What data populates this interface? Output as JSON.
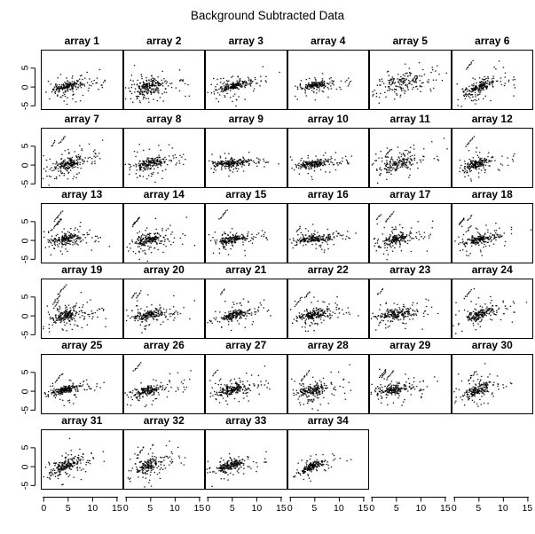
{
  "title": "Background Subtracted Data",
  "chart_data": {
    "type": "scatter",
    "title": "Background Subtracted Data",
    "grid": {
      "rows": 6,
      "cols": 6,
      "n_panels": 34,
      "grid_lines": false,
      "legend": "none"
    },
    "xlim": [
      -0.6,
      16.2
    ],
    "ylim": [
      -6.1,
      9.9
    ],
    "x_ticks": [
      0,
      5,
      10,
      15
    ],
    "y_ticks": [
      5,
      0,
      -5
    ],
    "x_tick_labels": [
      "0",
      "5",
      "10",
      "15"
    ],
    "y_tick_labels": [
      "5",
      "0",
      "-5"
    ],
    "point_color": "#000000",
    "axis_color": "#000000",
    "panels": [
      {
        "label": "array 1",
        "seed": 101,
        "core": [
          4.9,
          0.2,
          1.3,
          0.6,
          0.3
        ],
        "nc": 130,
        "nh": 75,
        "nt": 14,
        "nb": 8,
        "st": 0
      },
      {
        "label": "array 2",
        "seed": 102,
        "core": [
          4.6,
          0.1,
          1.5,
          0.9,
          0.2
        ],
        "nc": 150,
        "nh": 85,
        "nt": 10,
        "nb": 10,
        "st": 0
      },
      {
        "label": "array 3",
        "seed": 103,
        "core": [
          5.2,
          0.3,
          1.6,
          0.55,
          0.35
        ],
        "nc": 150,
        "nh": 60,
        "nt": 12,
        "nb": 4,
        "st": 0
      },
      {
        "label": "array 4",
        "seed": 104,
        "core": [
          5.0,
          0.5,
          1.4,
          0.45,
          0.2
        ],
        "nc": 140,
        "nh": 50,
        "nt": 10,
        "nb": 6,
        "st": 0
      },
      {
        "label": "array 5",
        "seed": 105,
        "core": [
          6.0,
          1.0,
          2.6,
          1.5,
          0.35
        ],
        "nc": 110,
        "nh": 70,
        "nt": 8,
        "nb": 4,
        "st": 0,
        "hy": 1.6
      },
      {
        "label": "array 6",
        "seed": 106,
        "core": [
          5.0,
          0.0,
          1.5,
          0.7,
          0.5
        ],
        "nc": 140,
        "nh": 70,
        "nt": 12,
        "nb": 6,
        "st": 1
      },
      {
        "label": "array 7",
        "seed": 107,
        "core": [
          5.0,
          0.2,
          1.5,
          0.7,
          0.3
        ],
        "nc": 130,
        "nh": 80,
        "nt": 10,
        "nb": 8,
        "st": 2
      },
      {
        "label": "array 8",
        "seed": 108,
        "core": [
          4.7,
          0.4,
          1.5,
          0.7,
          0.3
        ],
        "nc": 150,
        "nh": 70,
        "nt": 10,
        "nb": 8,
        "st": 0
      },
      {
        "label": "array 9",
        "seed": 109,
        "core": [
          4.8,
          0.6,
          1.8,
          0.5,
          0.15
        ],
        "nc": 160,
        "nh": 60,
        "nt": 12,
        "nb": 4,
        "st": 0
      },
      {
        "label": "array 10",
        "seed": 110,
        "core": [
          4.6,
          0.3,
          1.7,
          0.5,
          0.15
        ],
        "nc": 150,
        "nh": 55,
        "nt": 12,
        "nb": 4,
        "st": 0
      },
      {
        "label": "array 11",
        "seed": 111,
        "core": [
          5.2,
          0.5,
          1.9,
          0.9,
          0.35
        ],
        "nc": 130,
        "nh": 70,
        "nt": 8,
        "nb": 4,
        "st": 1
      },
      {
        "label": "array 12",
        "seed": 112,
        "core": [
          4.6,
          0.2,
          1.3,
          0.6,
          0.3
        ],
        "nc": 140,
        "nh": 55,
        "nt": 8,
        "nb": 6,
        "st": 1
      },
      {
        "label": "array 13",
        "seed": 113,
        "core": [
          4.4,
          0.3,
          1.4,
          0.6,
          0.2
        ],
        "nc": 140,
        "nh": 65,
        "nt": 10,
        "nb": 6,
        "st": 3
      },
      {
        "label": "array 14",
        "seed": 114,
        "core": [
          4.8,
          0.2,
          1.4,
          0.7,
          0.25
        ],
        "nc": 140,
        "nh": 70,
        "nt": 8,
        "nb": 10,
        "st": 2
      },
      {
        "label": "array 15",
        "seed": 115,
        "core": [
          4.9,
          0.3,
          1.6,
          0.5,
          0.2
        ],
        "nc": 150,
        "nh": 55,
        "nt": 10,
        "nb": 5,
        "st": 1
      },
      {
        "label": "array 16",
        "seed": 116,
        "core": [
          4.7,
          0.4,
          1.8,
          0.5,
          0.15
        ],
        "nc": 160,
        "nh": 60,
        "nt": 10,
        "nb": 6,
        "st": 1
      },
      {
        "label": "array 17",
        "seed": 117,
        "core": [
          5.0,
          0.3,
          1.5,
          0.7,
          0.3
        ],
        "nc": 140,
        "nh": 75,
        "nt": 8,
        "nb": 6,
        "st": 2
      },
      {
        "label": "array 18",
        "seed": 118,
        "core": [
          5.1,
          0.2,
          1.4,
          0.6,
          0.25
        ],
        "nc": 140,
        "nh": 60,
        "nt": 10,
        "nb": 5,
        "st": 4
      },
      {
        "label": "array 19",
        "seed": 119,
        "core": [
          4.6,
          0.1,
          1.3,
          0.8,
          0.3
        ],
        "nc": 140,
        "nh": 80,
        "nt": 10,
        "nb": 8,
        "st": 3
      },
      {
        "label": "array 20",
        "seed": 120,
        "core": [
          4.8,
          0.3,
          1.6,
          0.6,
          0.25
        ],
        "nc": 140,
        "nh": 65,
        "nt": 10,
        "nb": 6,
        "st": 2
      },
      {
        "label": "array 21",
        "seed": 121,
        "core": [
          5.0,
          0.2,
          1.5,
          0.6,
          0.25
        ],
        "nc": 150,
        "nh": 60,
        "nt": 8,
        "nb": 6,
        "st": 1
      },
      {
        "label": "array 22",
        "seed": 122,
        "core": [
          4.7,
          0.3,
          1.5,
          0.6,
          0.25
        ],
        "nc": 150,
        "nh": 70,
        "nt": 8,
        "nb": 8,
        "st": 2
      },
      {
        "label": "array 23",
        "seed": 123,
        "core": [
          4.9,
          0.4,
          1.7,
          0.7,
          0.25
        ],
        "nc": 140,
        "nh": 70,
        "nt": 10,
        "nb": 6,
        "st": 1
      },
      {
        "label": "array 24",
        "seed": 124,
        "core": [
          5.3,
          0.5,
          1.5,
          0.7,
          0.4
        ],
        "nc": 140,
        "nh": 65,
        "nt": 8,
        "nb": 6,
        "st": 1
      },
      {
        "label": "array 25",
        "seed": 125,
        "core": [
          4.2,
          0.3,
          1.4,
          0.45,
          0.3
        ],
        "nc": 160,
        "nh": 55,
        "nt": 10,
        "nb": 6,
        "st": 1
      },
      {
        "label": "array 26",
        "seed": 126,
        "core": [
          4.7,
          0.3,
          1.5,
          0.6,
          0.3
        ],
        "nc": 130,
        "nh": 65,
        "nt": 10,
        "nb": 6,
        "st": 1
      },
      {
        "label": "array 27",
        "seed": 127,
        "core": [
          4.8,
          0.5,
          1.6,
          0.6,
          0.3
        ],
        "nc": 140,
        "nh": 70,
        "nt": 10,
        "nb": 6,
        "st": 1
      },
      {
        "label": "array 28",
        "seed": 128,
        "core": [
          4.6,
          0.2,
          1.5,
          0.7,
          0.25
        ],
        "nc": 140,
        "nh": 70,
        "nt": 8,
        "nb": 10,
        "st": 1
      },
      {
        "label": "array 29",
        "seed": 129,
        "core": [
          4.5,
          0.4,
          1.6,
          0.6,
          0.2
        ],
        "nc": 140,
        "nh": 65,
        "nt": 10,
        "nb": 4,
        "st": 3
      },
      {
        "label": "array 30",
        "seed": 130,
        "core": [
          4.8,
          0.3,
          1.3,
          0.8,
          0.5
        ],
        "nc": 130,
        "nh": 65,
        "nt": 6,
        "nb": 6,
        "st": 1
      },
      {
        "label": "array 31",
        "seed": 131,
        "core": [
          4.5,
          0.2,
          1.5,
          0.8,
          0.55
        ],
        "nc": 150,
        "nh": 70,
        "nt": 6,
        "nb": 4,
        "st": 0
      },
      {
        "label": "array 32",
        "seed": 132,
        "core": [
          4.4,
          0.3,
          1.4,
          0.8,
          0.35
        ],
        "nc": 130,
        "nh": 70,
        "nt": 8,
        "nb": 6,
        "st": 1
      },
      {
        "label": "array 33",
        "seed": 133,
        "core": [
          4.5,
          0.3,
          1.4,
          0.6,
          0.35
        ],
        "nc": 150,
        "nh": 60,
        "nt": 8,
        "nb": 5,
        "st": 0
      },
      {
        "label": "array 34",
        "seed": 134,
        "core": [
          4.3,
          0.0,
          1.2,
          0.5,
          0.55
        ],
        "nc": 140,
        "nh": 45,
        "nt": 6,
        "nb": 4,
        "st": 0
      }
    ]
  }
}
